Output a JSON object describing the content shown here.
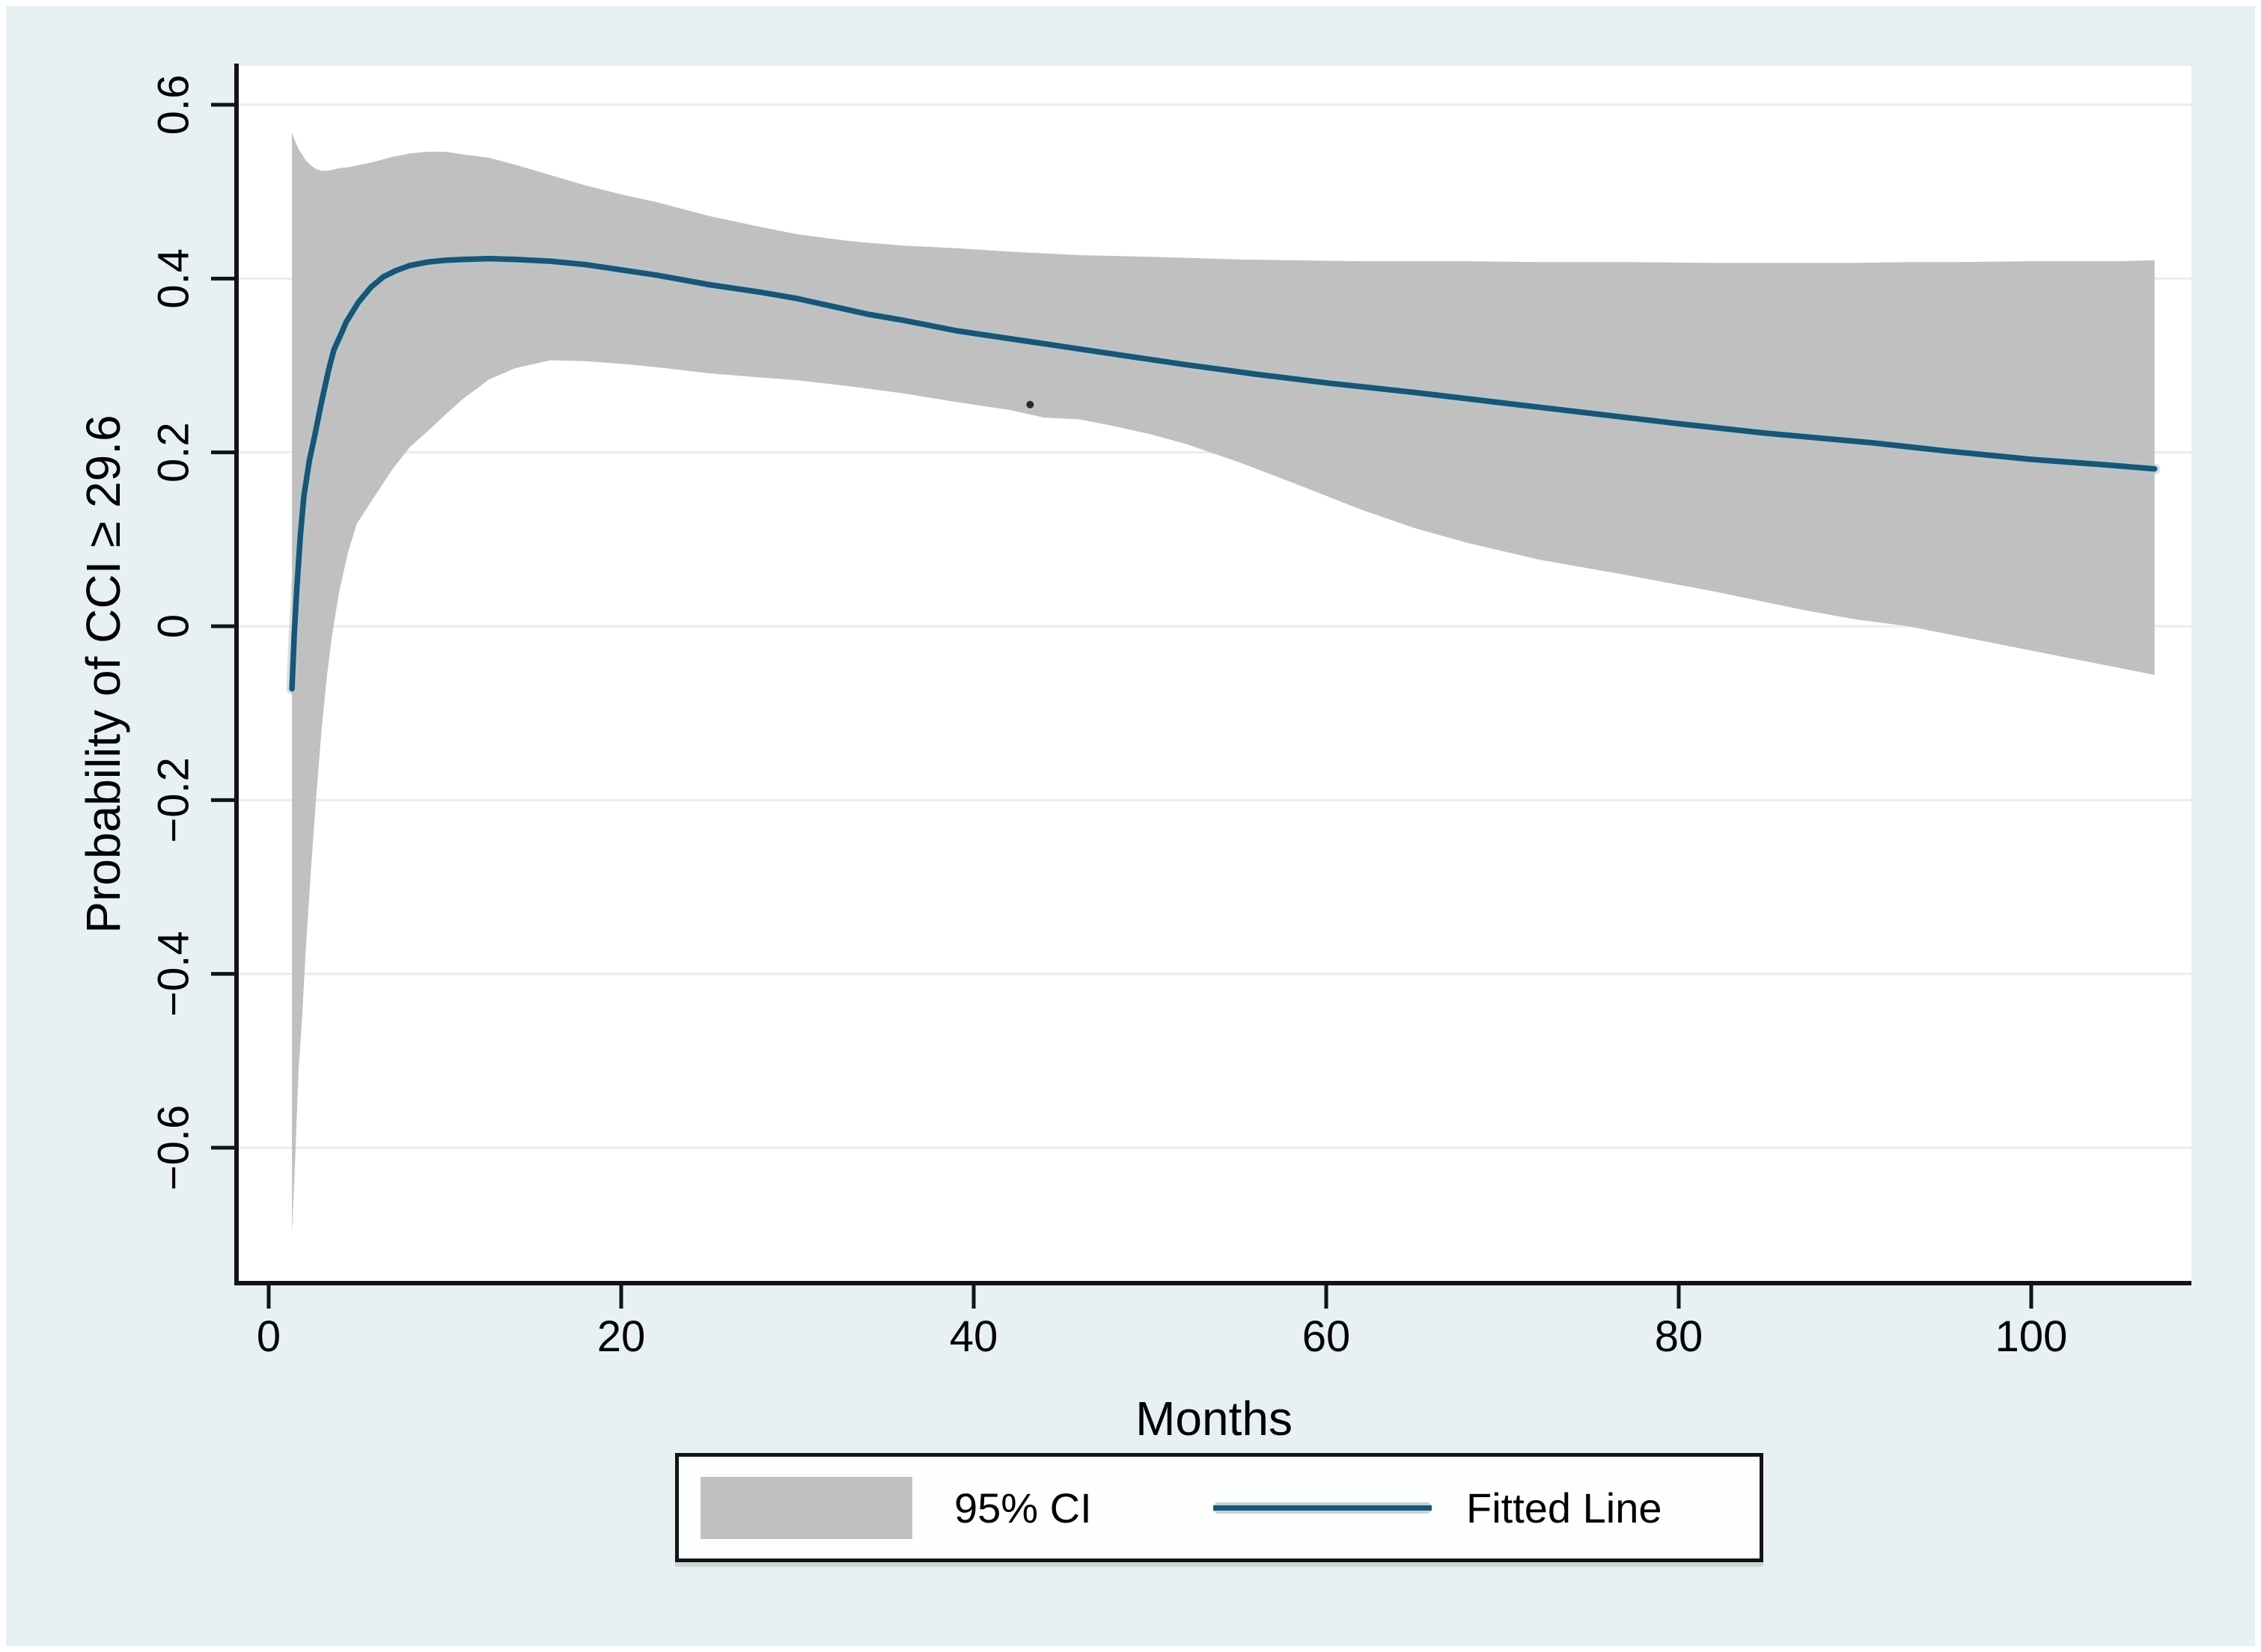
{
  "figure": {
    "ylabel": "Probability of CCI ≥ 29.6",
    "xlabel": "Months",
    "legend": {
      "ci_label": "95% CI",
      "line_label": "Fitted Line"
    }
  },
  "colors": {
    "page_background": "#e7f0f2",
    "plot_background": "#ffffff",
    "gridline": "#e7edee",
    "axis": "#141414",
    "ci_band": "#c0c0c0",
    "fitted_line": "#1b5573",
    "fitted_line_halo": "#adc8d6"
  },
  "chart_data": {
    "type": "line",
    "subtype": "fitted line with 95% confidence band",
    "title": "",
    "xlabel": "Months",
    "ylabel": "Probability of CCI ≥ 29.6",
    "xlim": [
      -2,
      109
    ],
    "ylim": [
      -0.75,
      0.64
    ],
    "grid": "horizontal only",
    "legend_position": "bottom center, boxed",
    "x_ticks": [
      {
        "value": 0,
        "label": "0"
      },
      {
        "value": 20,
        "label": "20"
      },
      {
        "value": 40,
        "label": "40"
      },
      {
        "value": 60,
        "label": "60"
      },
      {
        "value": 80,
        "label": "80"
      },
      {
        "value": 100,
        "label": "100"
      }
    ],
    "y_ticks": [
      {
        "value": 0.6,
        "label": "0.6"
      },
      {
        "value": 0.4,
        "label": "0.4"
      },
      {
        "value": 0.2,
        "label": "0.2"
      },
      {
        "value": 0,
        "label": "0"
      },
      {
        "value": -0.2,
        "label": "−0.2"
      },
      {
        "value": -0.4,
        "label": "−0.4"
      },
      {
        "value": -0.6,
        "label": "−0.6"
      }
    ],
    "series": [
      {
        "name": "95% CI",
        "type": "band",
        "color": "#c0c0c0",
        "points_x_lower_upper": [
          [
            1.32,
            -0.7,
            0.568
          ],
          [
            1.5,
            -0.615,
            0.558
          ],
          [
            1.7,
            -0.51,
            0.549
          ],
          [
            1.9,
            -0.45,
            0.543
          ],
          [
            2.1,
            -0.373,
            0.536
          ],
          [
            2.4,
            -0.28,
            0.53
          ],
          [
            2.7,
            -0.195,
            0.526
          ],
          [
            3.0,
            -0.12,
            0.524
          ],
          [
            3.3,
            -0.058,
            0.524
          ],
          [
            3.6,
            -0.01,
            0.525
          ],
          [
            4.0,
            0.04,
            0.527
          ],
          [
            4.5,
            0.085,
            0.528
          ],
          [
            5.0,
            0.118,
            0.53
          ],
          [
            5.9,
            0.146,
            0.534
          ],
          [
            7.0,
            0.18,
            0.54
          ],
          [
            8.0,
            0.206,
            0.544
          ],
          [
            9.0,
            0.224,
            0.546
          ],
          [
            10.0,
            0.243,
            0.546
          ],
          [
            11.0,
            0.261,
            0.543
          ],
          [
            12.5,
            0.284,
            0.539
          ],
          [
            14.0,
            0.297,
            0.531
          ],
          [
            16.0,
            0.306,
            0.519
          ],
          [
            18.0,
            0.305,
            0.507
          ],
          [
            20.0,
            0.302,
            0.497
          ],
          [
            22.0,
            0.298,
            0.488
          ],
          [
            25.0,
            0.291,
            0.472
          ],
          [
            28.0,
            0.286,
            0.459
          ],
          [
            30.0,
            0.283,
            0.451
          ],
          [
            33.0,
            0.276,
            0.443
          ],
          [
            36.0,
            0.268,
            0.438
          ],
          [
            39.0,
            0.258,
            0.435
          ],
          [
            42.0,
            0.249,
            0.431
          ],
          [
            44.0,
            0.24,
            0.429
          ],
          [
            46.0,
            0.238,
            0.427
          ],
          [
            48.0,
            0.23,
            0.426
          ],
          [
            50.0,
            0.221,
            0.425
          ],
          [
            52.0,
            0.21,
            0.424
          ],
          [
            55.0,
            0.189,
            0.422
          ],
          [
            58.0,
            0.166,
            0.421
          ],
          [
            62.0,
            0.134,
            0.42
          ],
          [
            65.0,
            0.113,
            0.42
          ],
          [
            68.0,
            0.096,
            0.42
          ],
          [
            72.0,
            0.077,
            0.419
          ],
          [
            77.0,
            0.059,
            0.419
          ],
          [
            82.0,
            0.04,
            0.418
          ],
          [
            87.0,
            0.019,
            0.418
          ],
          [
            90.0,
            0.008,
            0.418
          ],
          [
            93.0,
            0.0,
            0.419
          ],
          [
            96.0,
            -0.012,
            0.419
          ],
          [
            100.0,
            -0.028,
            0.42
          ],
          [
            103.0,
            -0.04,
            0.42
          ],
          [
            105.0,
            -0.048,
            0.42
          ],
          [
            107.0,
            -0.056,
            0.421
          ]
        ]
      },
      {
        "name": "Fitted Line",
        "type": "line",
        "color": "#1b5573",
        "points_x_y": [
          [
            1.32,
            -0.072
          ],
          [
            1.45,
            -0.01
          ],
          [
            1.6,
            0.045
          ],
          [
            1.8,
            0.105
          ],
          [
            2.0,
            0.15
          ],
          [
            2.3,
            0.19
          ],
          [
            2.6,
            0.218
          ],
          [
            3.0,
            0.258
          ],
          [
            3.4,
            0.295
          ],
          [
            3.7,
            0.318
          ],
          [
            4.1,
            0.336
          ],
          [
            4.4,
            0.35
          ],
          [
            5.1,
            0.373
          ],
          [
            5.8,
            0.39
          ],
          [
            6.5,
            0.402
          ],
          [
            7.2,
            0.409
          ],
          [
            8.0,
            0.415
          ],
          [
            9.0,
            0.419
          ],
          [
            10.0,
            0.421
          ],
          [
            11.0,
            0.422
          ],
          [
            12.5,
            0.423
          ],
          [
            14.0,
            0.422
          ],
          [
            16.0,
            0.42
          ],
          [
            18.0,
            0.416
          ],
          [
            20.0,
            0.41
          ],
          [
            22.0,
            0.404
          ],
          [
            25.0,
            0.393
          ],
          [
            28.0,
            0.384
          ],
          [
            30.0,
            0.377
          ],
          [
            34.0,
            0.359
          ],
          [
            36.0,
            0.352
          ],
          [
            39.0,
            0.34
          ],
          [
            42.0,
            0.331
          ],
          [
            45.0,
            0.322
          ],
          [
            48.0,
            0.313
          ],
          [
            52.0,
            0.301
          ],
          [
            56.0,
            0.29
          ],
          [
            60.0,
            0.28
          ],
          [
            65.0,
            0.269
          ],
          [
            70.0,
            0.257
          ],
          [
            75.0,
            0.245
          ],
          [
            80.0,
            0.233
          ],
          [
            85.0,
            0.222
          ],
          [
            91.0,
            0.211
          ],
          [
            95.0,
            0.202
          ],
          [
            100.0,
            0.192
          ],
          [
            104.0,
            0.186
          ],
          [
            107.0,
            0.181
          ]
        ]
      }
    ],
    "stray_point": {
      "x": 43.2,
      "y": 0.255
    },
    "legend_entries": [
      "95% CI",
      "Fitted Line"
    ]
  }
}
